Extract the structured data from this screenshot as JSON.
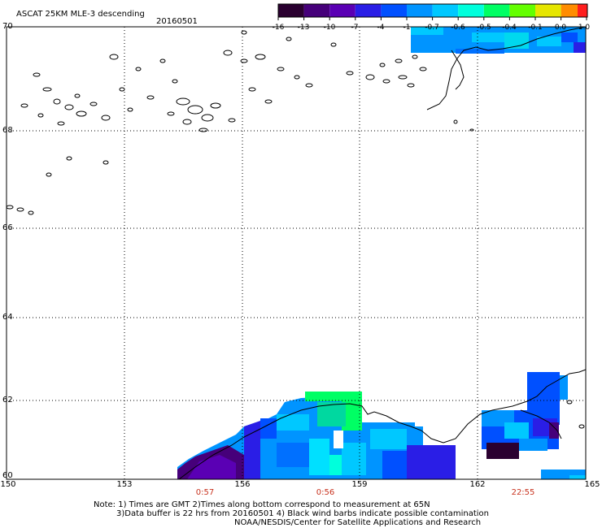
{
  "title": "ASCAT 25KM MLE-3 descending",
  "date": "20160501",
  "colorbar": {
    "labels": [
      "-16",
      "-13",
      "-10",
      "-7",
      "-4",
      "-1",
      "-0.7",
      "-0.6",
      "-0.5",
      "-0.4",
      "-0.1",
      "0.0",
      "1.0"
    ],
    "colors": [
      "#2a0030",
      "#46007a",
      "#5a00b4",
      "#2a1ee6",
      "#0050ff",
      "#0094ff",
      "#00c8ff",
      "#00ffdc",
      "#00ff64",
      "#64ff00",
      "#e6e600",
      "#ff8c00",
      "#ff1e1e"
    ]
  },
  "axes": {
    "lat_labels": [
      "70",
      "68",
      "66",
      "64",
      "62",
      "60"
    ],
    "lon_labels": [
      "150",
      "153",
      "156",
      "159",
      "162",
      "165"
    ]
  },
  "times": [
    "0:57",
    "0:56",
    "22:55"
  ],
  "notes": [
    "Note: 1) Times are GMT 2)Times along bottom correspond to measurement at 65N",
    "3)Data buffer is 22 hrs from 20160501 4) Black wind barbs indicate possible contamination",
    "NOAA/NESDIS/Center for Satellite Applications and Research"
  ],
  "colors": {
    "time_label": "#c8321e",
    "grid": "#000000"
  }
}
